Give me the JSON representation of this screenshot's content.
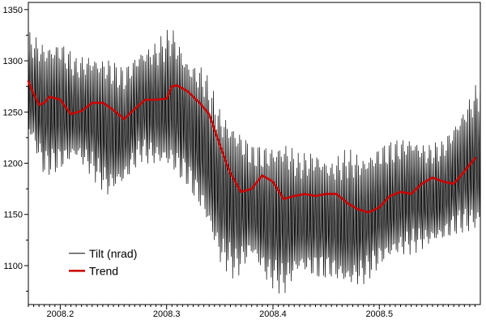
{
  "chart_data": {
    "type": "line",
    "title": "",
    "xlabel": "",
    "ylabel": "",
    "xlim": [
      2008.17,
      2008.595
    ],
    "ylim": [
      1062,
      1357
    ],
    "grid": false,
    "legend_position": "bottom-left",
    "x_ticks": [
      {
        "value": 2008.2,
        "label": "2008.2"
      },
      {
        "value": 2008.3,
        "label": "2008.3"
      },
      {
        "value": 2008.4,
        "label": "2008.4"
      },
      {
        "value": 2008.5,
        "label": "2008.5"
      }
    ],
    "y_ticks": [
      {
        "value": 1100,
        "label": "1100"
      },
      {
        "value": 1150,
        "label": "1150"
      },
      {
        "value": 1200,
        "label": "1200"
      },
      {
        "value": 1250,
        "label": "1250"
      },
      {
        "value": 1300,
        "label": "1300"
      },
      {
        "value": 1350,
        "label": "1350"
      }
    ],
    "series": [
      {
        "name": "Tilt (nrad)",
        "color": "#000000",
        "style": "oscillating",
        "x": [
          2008.17,
          2008.185,
          2008.2,
          2008.215,
          2008.23,
          2008.245,
          2008.26,
          2008.275,
          2008.29,
          2008.305,
          2008.32,
          2008.335,
          2008.35,
          2008.365,
          2008.38,
          2008.395,
          2008.41,
          2008.425,
          2008.44,
          2008.455,
          2008.47,
          2008.485,
          2008.5,
          2008.515,
          2008.53,
          2008.545,
          2008.56,
          2008.575,
          2008.595
        ],
        "high": [
          1325,
          1315,
          1318,
          1300,
          1305,
          1300,
          1290,
          1310,
          1315,
          1330,
          1300,
          1290,
          1250,
          1235,
          1215,
          1215,
          1220,
          1205,
          1210,
          1200,
          1210,
          1205,
          1215,
          1220,
          1225,
          1215,
          1220,
          1245,
          1280
        ],
        "low": [
          1230,
          1190,
          1195,
          1205,
          1190,
          1170,
          1180,
          1205,
          1200,
          1195,
          1180,
          1150,
          1105,
          1090,
          1110,
          1085,
          1075,
          1095,
          1090,
          1090,
          1080,
          1085,
          1100,
          1110,
          1115,
          1120,
          1125,
          1135,
          1135
        ]
      },
      {
        "name": "Trend",
        "color": "#cc0000",
        "style": "smooth",
        "x": [
          2008.17,
          2008.175,
          2008.18,
          2008.185,
          2008.19,
          2008.2,
          2008.21,
          2008.22,
          2008.23,
          2008.24,
          2008.25,
          2008.26,
          2008.27,
          2008.28,
          2008.29,
          2008.3,
          2008.305,
          2008.31,
          2008.32,
          2008.33,
          2008.34,
          2008.35,
          2008.36,
          2008.37,
          2008.38,
          2008.39,
          2008.4,
          2008.41,
          2008.42,
          2008.43,
          2008.44,
          2008.45,
          2008.46,
          2008.47,
          2008.48,
          2008.49,
          2008.5,
          2008.51,
          2008.52,
          2008.53,
          2008.54,
          2008.55,
          2008.56,
          2008.57,
          2008.58,
          2008.59
        ],
        "values": [
          1280,
          1268,
          1257,
          1259,
          1265,
          1262,
          1248,
          1251,
          1259,
          1259,
          1252,
          1243,
          1253,
          1262,
          1262,
          1263,
          1275,
          1276,
          1270,
          1260,
          1248,
          1218,
          1190,
          1172,
          1175,
          1188,
          1182,
          1165,
          1168,
          1170,
          1168,
          1170,
          1170,
          1161,
          1155,
          1152,
          1157,
          1168,
          1172,
          1170,
          1180,
          1186,
          1182,
          1180,
          1192,
          1205
        ]
      }
    ]
  }
}
